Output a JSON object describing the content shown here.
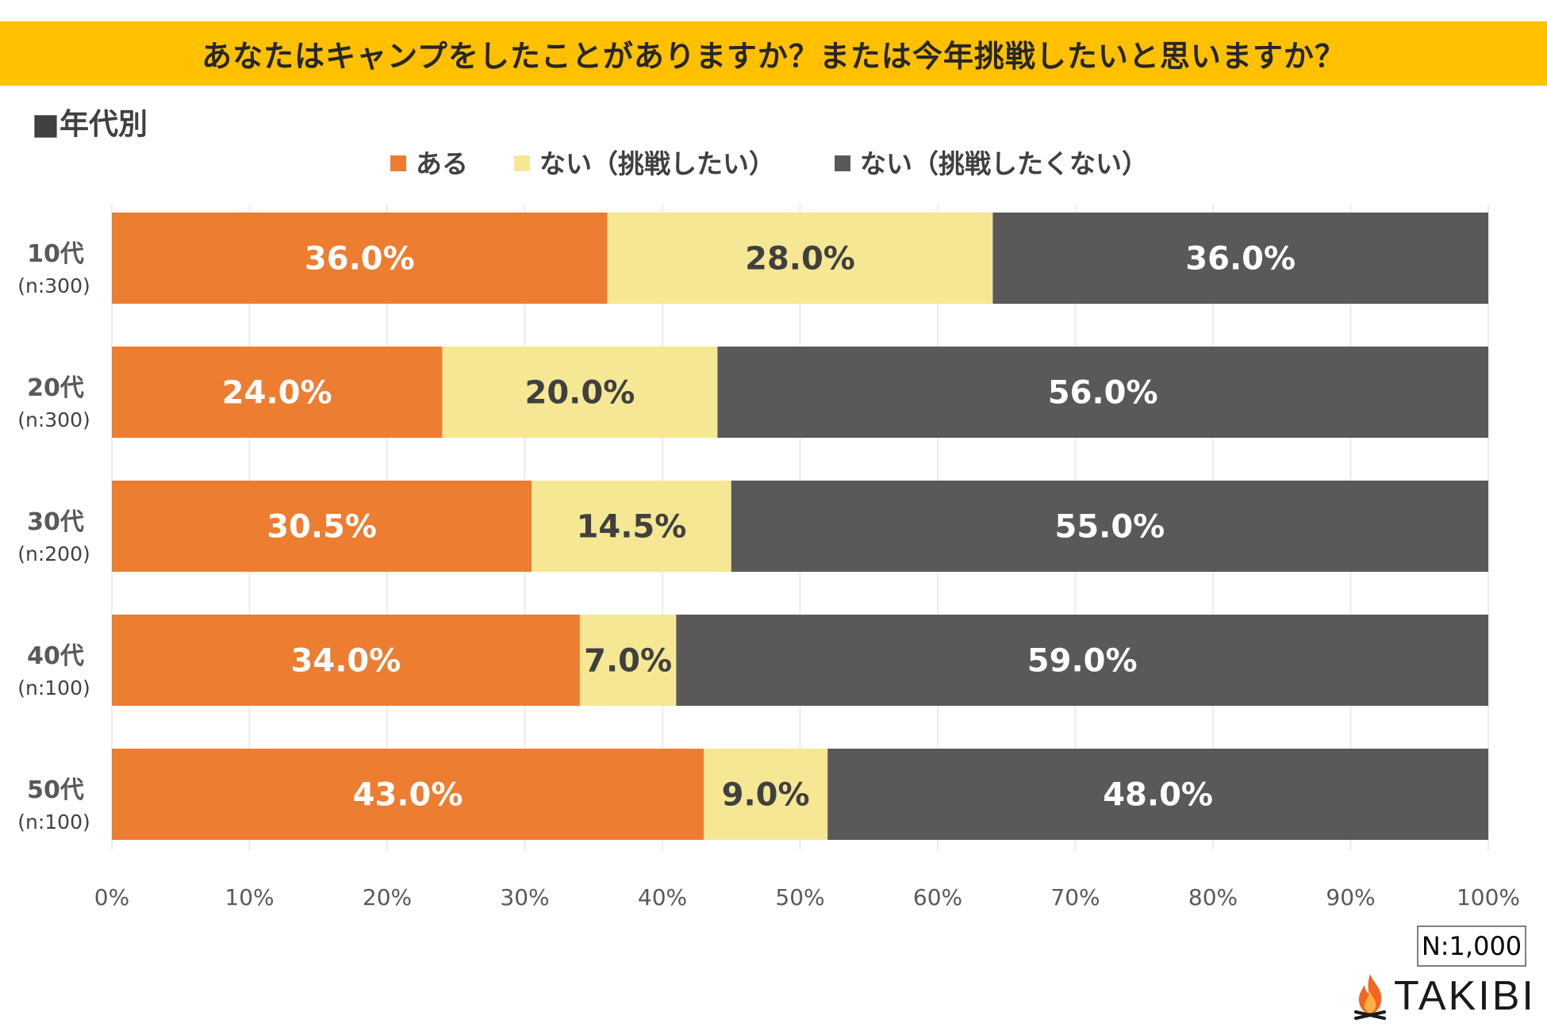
{
  "title": "あなたはキャンプをしたことがありますか？または今年挑戦したいと思いますか？",
  "subtitle": "■年代別",
  "sample_note": "N:1,000",
  "brand": "TAKIBI",
  "icons": {
    "logo": "flame-icon"
  },
  "colors": {
    "title_bg": "#ffc000",
    "series": [
      "#ed7d31",
      "#f5e794",
      "#595959"
    ],
    "label_colors": [
      "#ffffff",
      "#404040",
      "#ffffff"
    ]
  },
  "chart_data": {
    "type": "bar",
    "orientation": "horizontal",
    "stacked": true,
    "title": "あなたはキャンプをしたことがありますか？または今年挑戦したいと思いますか？",
    "subtitle": "■年代別",
    "categories": [
      "10代",
      "20代",
      "30代",
      "40代",
      "50代"
    ],
    "category_sample_sizes": [
      "(n:300)",
      "(n:300)",
      "(n:200)",
      "(n:100)",
      "(n:100)"
    ],
    "series": [
      {
        "name": "ある",
        "values": [
          36.0,
          24.0,
          30.5,
          34.0,
          43.0
        ]
      },
      {
        "name": "ない（挑戦したい）",
        "values": [
          28.0,
          20.0,
          14.5,
          7.0,
          9.0
        ]
      },
      {
        "name": "ない（挑戦したくない）",
        "values": [
          36.0,
          56.0,
          55.0,
          59.0,
          48.0
        ]
      }
    ],
    "value_suffix": "%",
    "xlim": [
      0,
      100
    ],
    "xticks": [
      "0%",
      "10%",
      "20%",
      "30%",
      "40%",
      "50%",
      "60%",
      "70%",
      "80%",
      "90%",
      "100%"
    ],
    "grid": true,
    "legend_position": "top"
  }
}
